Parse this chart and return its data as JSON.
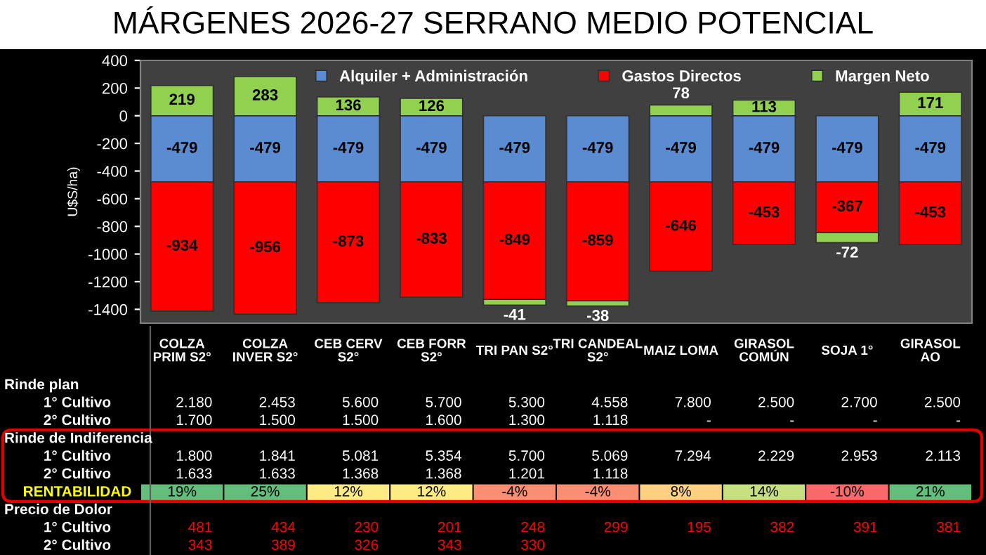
{
  "chart_data": [
    {
      "type": "bar",
      "title": "MÁRGENES 2026-27 SERRANO MEDIO POTENCIAL",
      "ylabel": "U$S/ha)",
      "stacked": true,
      "categories": [
        null,
        null,
        null,
        null,
        null,
        null,
        null,
        null,
        null,
        null
      ],
      "series": [
        {
          "name": "Alquiler + Administración",
          "color": "#5b8bd0",
          "values": [
            -479,
            -479,
            -479,
            -479,
            -479,
            -479,
            -479,
            -479,
            -479,
            -479
          ]
        },
        {
          "name": "Gastos Directos",
          "color": "#ff0000",
          "values": [
            -934,
            -956,
            -873,
            -833,
            -849,
            -859,
            -646,
            -453,
            -367,
            -453
          ]
        },
        {
          "name": "Margen Neto",
          "color": "#92d050",
          "values": [
            219,
            283,
            136,
            126,
            -41,
            -38,
            78,
            113,
            -72,
            171
          ]
        }
      ],
      "ylim": [
        -1500,
        400
      ],
      "yticks": [
        -1400,
        -1200,
        -1000,
        -800,
        -600,
        -400,
        -200,
        0,
        200,
        400
      ],
      "data_labels": true,
      "legend": "top",
      "grid": false,
      "tick_labels": "y"
    },
    {
      "type": "other",
      "categories": [
        "COLZA\nPRIM S2°",
        "COLZA\nINVER S2°",
        "CEB CERV\nS2°",
        "CEB FORR\nS2°",
        "TRI PAN S2°",
        "TRI CANDEAL\nS2°",
        "MAIZ LOMA",
        "GIRASOL\nCOMÚN",
        "SOJA 1°",
        "GIRASOL\nAO"
      ],
      "y_categories": [
        "Rinde plan",
        "1° Cultivo",
        "2° Cultivo",
        "Rinde de Indiferencia",
        "1° Cultivo",
        "2° Cultivo",
        "RENTABILIDAD",
        "Precio de Dolor",
        "1° Cultivo",
        "2° Cultivo"
      ],
      "cell_labels": [
        [
          null,
          null,
          null,
          null,
          null,
          null,
          null,
          null,
          null,
          null
        ],
        [
          "2.180",
          "2.453",
          "5.600",
          "5.700",
          "5.300",
          "4.558",
          "7.800",
          "2.500",
          "2.700",
          "2.500"
        ],
        [
          "1.700",
          "1.500",
          "1.500",
          "1.600",
          "1.300",
          "1.118",
          "-",
          "-",
          "-",
          "-"
        ],
        [
          null,
          null,
          null,
          null,
          null,
          null,
          null,
          null,
          null,
          null
        ],
        [
          "1.800",
          "1.841",
          "5.081",
          "5.354",
          "5.700",
          "5.069",
          "7.294",
          "2.229",
          "2.953",
          "2.113"
        ],
        [
          "1.633",
          "1.633",
          "1.368",
          "1.368",
          "1.201",
          "1.118",
          null,
          null,
          null,
          null
        ],
        [
          "19%",
          "25%",
          "12%",
          "12%",
          "-4%",
          "-4%",
          "8%",
          "14%",
          "-10%",
          "21%"
        ],
        [
          null,
          null,
          null,
          null,
          null,
          null,
          null,
          null,
          null,
          null
        ],
        [
          "481",
          "434",
          "230",
          "201",
          "248",
          "299",
          "195",
          "382",
          "391",
          "381"
        ],
        [
          "343",
          "389",
          "326",
          "343",
          "330",
          null,
          null,
          null,
          null,
          null
        ]
      ],
      "colors": [
        "#63be7b",
        "#63be7b",
        "#ffeb84",
        "#ffeb84",
        "#fa8e72",
        "#fa8e72",
        "#fdd17f",
        "#c7e07f",
        "#f8696b",
        "#63be7b"
      ]
    }
  ]
}
